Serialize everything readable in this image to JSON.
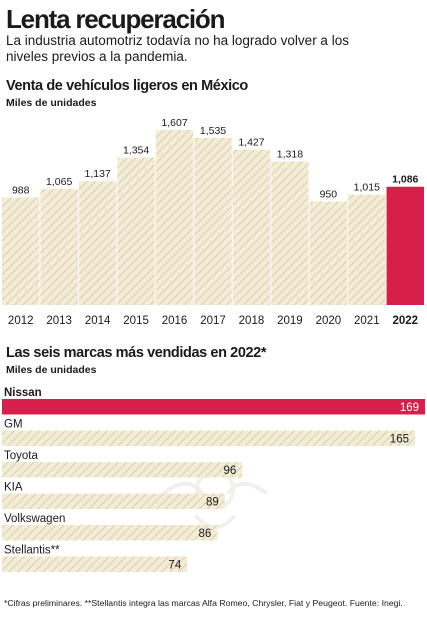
{
  "header": {
    "title": "Lenta recuperación",
    "subtitle": "La industria automotriz todavía no ha logrado volver a los niveles previos a la pandemia."
  },
  "colors": {
    "bar_fill": "#f3ecd6",
    "bar_hatch": "#d5c99e",
    "highlight": "#d6204b",
    "text": "#1a1a1a"
  },
  "chart_data": [
    {
      "type": "bar",
      "title": "Venta de vehículos ligeros en México",
      "ylabel": "Miles de unidades",
      "categories": [
        "2012",
        "2013",
        "2014",
        "2015",
        "2016",
        "2017",
        "2018",
        "2019",
        "2020",
        "2021",
        "2022"
      ],
      "values": [
        988,
        1065,
        1137,
        1354,
        1607,
        1535,
        1427,
        1318,
        950,
        1015,
        1086
      ],
      "value_labels": [
        "988",
        "1,065",
        "1,137",
        "1,354",
        "1,607",
        "1,535",
        "1,427",
        "1,318",
        "950",
        "1,015",
        "1,086"
      ],
      "highlight_index": 10
    },
    {
      "type": "bar",
      "orientation": "horizontal",
      "title": "Las seis marcas más vendidas en 2022*",
      "ylabel": "Miles de unidades",
      "categories": [
        "Nissan",
        "GM",
        "Toyota",
        "KIA",
        "Volkswagen",
        "Stellantis**"
      ],
      "values": [
        169,
        165,
        96,
        89,
        86,
        74
      ],
      "highlight_index": 0
    }
  ],
  "footnote": "*Cifras preliminares. **Stellantis integra las marcas Alfa Romeo, Chrysler, Fiat y Peugeot. Fuente: Inegi."
}
